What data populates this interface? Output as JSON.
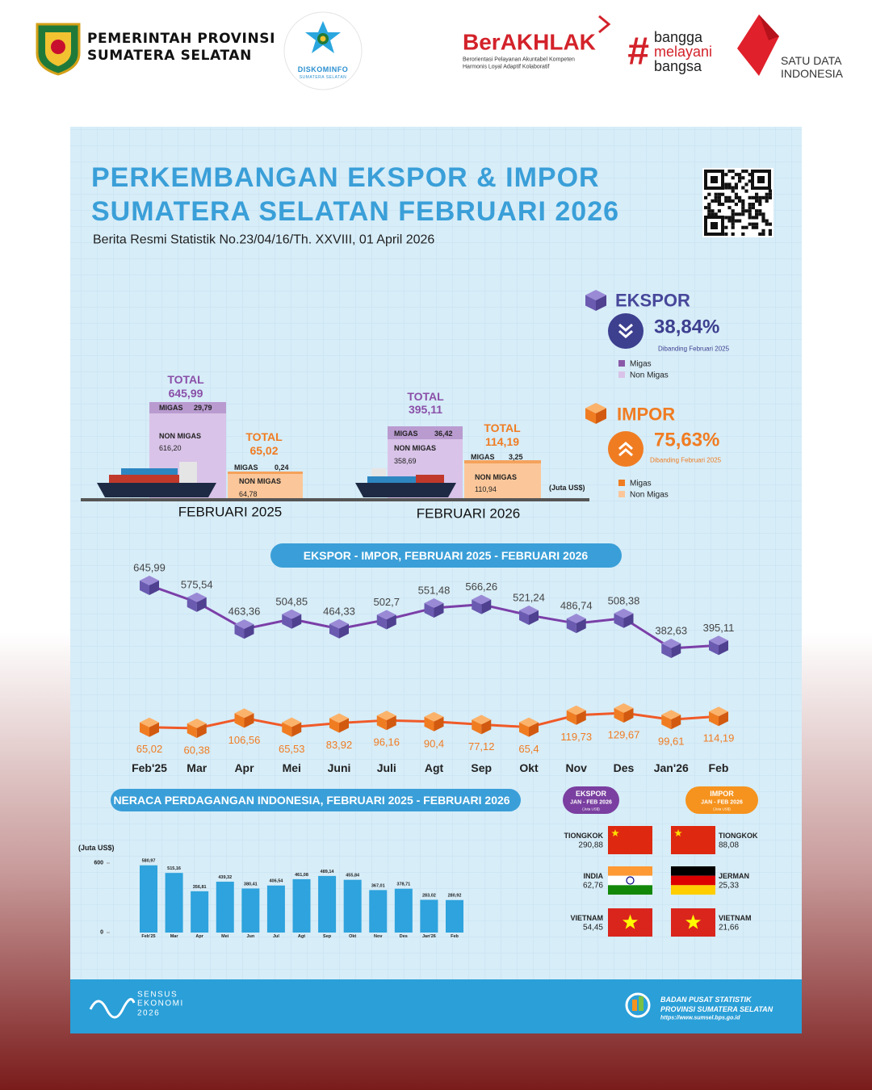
{
  "header": {
    "government": [
      "PEMERINTAH PROVINSI",
      "SUMATERA SELATAN"
    ],
    "diskominfo": [
      "DISKOMINFO",
      "SUMATERA SELATAN"
    ],
    "berakhlak": {
      "title": "BerAKHLAK",
      "tagline": [
        "Berorientasi Pelayanan Akuntabel Kompeten",
        "Harmonis Loyal Adaptif Kolaboratif"
      ]
    },
    "bangga": [
      "#",
      "bangga",
      "melayani",
      "bangsa"
    ],
    "satu_data": [
      "SATU DATA",
      "INDONESIA"
    ]
  },
  "infographic": {
    "title": [
      "PERKEMBANGAN EKSPOR & IMPOR",
      "SUMATERA SELATAN FEBRUARI 2026"
    ],
    "subtitle": "Berita Resmi Statistik No.23/04/16/Th. XXVIII, 01 April 2026",
    "summary": [
      {
        "label": "EKSPOR",
        "change": "38,84%",
        "note": "Dibanding Februari 2025",
        "legend": [
          "Migas",
          "Non Migas"
        ]
      },
      {
        "label": "IMPOR",
        "change": "75,63%",
        "note": "Dibanding Februari 2025",
        "legend": [
          "Migas",
          "Non Migas"
        ]
      }
    ],
    "comparison": {
      "unit": "(Juta US$)",
      "periods": [
        {
          "label": "FEBRUARI 2025",
          "ekspor": {
            "total_label": "TOTAL",
            "total": "645,99",
            "migas_label": "MIGAS",
            "migas": "29,79",
            "non_migas_label": "NON MIGAS",
            "non_migas": "616,20"
          },
          "impor": {
            "total_label": "TOTAL",
            "total": "65,02",
            "migas_label": "MIGAS",
            "migas": "0,24",
            "non_migas_label": "NON MIGAS",
            "non_migas": "64,78"
          }
        },
        {
          "label": "FEBRUARI 2026",
          "ekspor": {
            "total_label": "TOTAL",
            "total": "395,11",
            "migas_label": "MIGAS",
            "migas": "36,42",
            "non_migas_label": "NON MIGAS",
            "non_migas": "358,69"
          },
          "impor": {
            "total_label": "TOTAL",
            "total": "114,19",
            "migas_label": "MIGAS",
            "migas": "3,25",
            "non_migas_label": "NON MIGAS",
            "non_migas": "110,94"
          }
        }
      ]
    },
    "partners": [
      {
        "title": "EKSPOR",
        "period": "JAN - FEB 2026",
        "unit": "(Juta US$)",
        "countries": [
          {
            "name": "TIONGKOK",
            "value": "290,88"
          },
          {
            "name": "INDIA",
            "value": "62,76"
          },
          {
            "name": "VIETNAM",
            "value": "54,45"
          }
        ]
      },
      {
        "title": "IMPOR",
        "period": "JAN - FEB 2026",
        "unit": "(Juta US$)",
        "countries": [
          {
            "name": "TIONGKOK",
            "value": "88,08"
          },
          {
            "name": "JERMAN",
            "value": "25,33"
          },
          {
            "name": "VIETNAM",
            "value": "21,66"
          }
        ]
      }
    ],
    "footer": {
      "sensus": [
        "SENSUS",
        "EKONOMI",
        "2026"
      ],
      "bps": [
        "BADAN PUSAT STATISTIK",
        "PROVINSI SUMATERA SELATAN",
        "https://www.sumsel.bps.go.id"
      ]
    }
  },
  "chart_data": [
    {
      "type": "line",
      "title": "EKSPOR - IMPOR, FEBRUARI 2025 -  FEBRUARI 2026",
      "categories": [
        "Feb'25",
        "Mar",
        "Apr",
        "Mei",
        "Juni",
        "Juli",
        "Agt",
        "Sep",
        "Okt",
        "Nov",
        "Des",
        "Jan'26",
        "Feb"
      ],
      "series": [
        {
          "color": "#7b3fa8",
          "values": [
            645.99,
            575.54,
            463.36,
            504.85,
            464.33,
            502.7,
            551.48,
            566.26,
            521.24,
            486.74,
            508.38,
            382.63,
            395.11
          ],
          "value_labels": [
            "645,99",
            "575,54",
            "463,36",
            "504,85",
            "464,33",
            "502,7",
            "551,48",
            "566,26",
            "521,24",
            "486,74",
            "508,38",
            "382,63",
            "395,11"
          ]
        },
        {
          "color": "#f05a28",
          "values": [
            65.02,
            60.38,
            106.56,
            65.53,
            83.92,
            96.16,
            90.4,
            77.12,
            65.4,
            119.73,
            129.67,
            99.61,
            114.19
          ],
          "value_labels": [
            "65,02",
            "60,38",
            "106,56",
            "65,53",
            "83,92",
            "96,16",
            "90,4",
            "77,12",
            "65,4",
            "119,73",
            "129,67",
            "99,61",
            "114,19"
          ]
        }
      ]
    },
    {
      "type": "bar",
      "title": "NERACA PERDAGANGAN INDONESIA, FEBRUARI 2025 - FEBRUARI 2026",
      "y_label": "(Juta US$)",
      "categories": [
        "Feb'25",
        "Mar",
        "Apr",
        "Mei",
        "Jun",
        "Jul",
        "Agt",
        "Sep",
        "Okt",
        "Nov",
        "Des",
        "Jan'26",
        "Feb"
      ],
      "values": [
        580.97,
        515.16,
        356.81,
        439.32,
        380.41,
        406.54,
        461.08,
        489.14,
        455.84,
        367.01,
        378.71,
        283.02,
        280.92
      ],
      "value_labels": [
        "580,97",
        "515,16",
        "356,81",
        "439,32",
        "380,41",
        "406,54",
        "461,08",
        "489,14",
        "455,84",
        "367,01",
        "378,71",
        "283,02",
        "280,92"
      ],
      "color": "#2ea3dd",
      "ylim": [
        0,
        650
      ],
      "yticks": [
        0,
        600
      ]
    }
  ]
}
